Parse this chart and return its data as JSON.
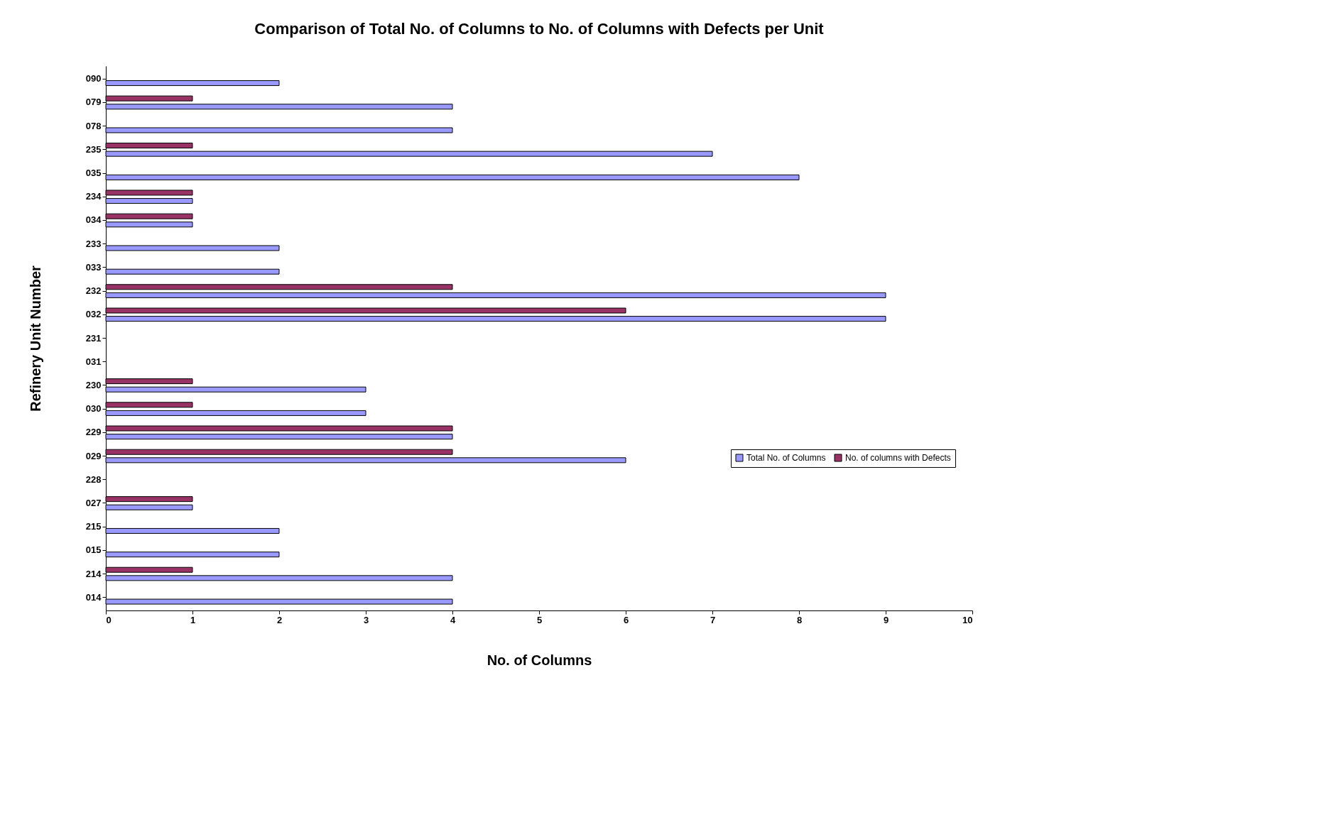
{
  "chart_data": {
    "type": "bar",
    "orientation": "horizontal",
    "title": "Comparison of Total No. of Columns to No. of Columns with Defects per Unit",
    "xlabel": "No. of Columns",
    "ylabel": "Refinery  Unit Number",
    "categories": [
      "090",
      "079",
      "078",
      "235",
      "035",
      "234",
      "034",
      "233",
      "033",
      "232",
      "032",
      "231",
      "031",
      "230",
      "030",
      "229",
      "029",
      "228",
      "027",
      "215",
      "015",
      "214",
      "014"
    ],
    "series": [
      {
        "name": "Total No. of Columns",
        "color": "#9999ff",
        "values": [
          2,
          4,
          4,
          7,
          8,
          1,
          1,
          2,
          2,
          9,
          9,
          null,
          null,
          3,
          3,
          4,
          6,
          null,
          1,
          2,
          2,
          4,
          4
        ]
      },
      {
        "name": "No. of columns with Defects",
        "color": "#993366",
        "values": [
          null,
          1,
          null,
          1,
          null,
          1,
          1,
          null,
          null,
          4,
          6,
          null,
          null,
          1,
          1,
          4,
          4,
          null,
          1,
          null,
          null,
          1,
          null
        ]
      }
    ],
    "xlim": [
      0,
      10
    ],
    "xticks": [
      0,
      1,
      2,
      3,
      4,
      5,
      6,
      7,
      8,
      9,
      10
    ],
    "grid": false,
    "legend": "right"
  }
}
